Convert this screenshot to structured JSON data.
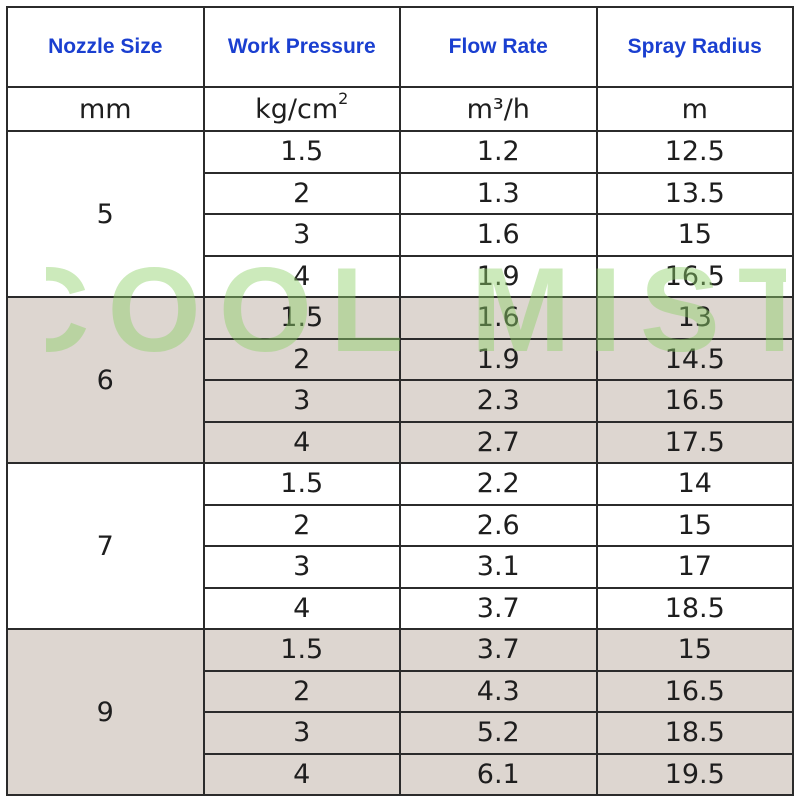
{
  "headers": [
    "Nozzle Size",
    "Work Pressure",
    "Flow Rate",
    "Spray Radius"
  ],
  "units": {
    "nozzle": "mm",
    "pressure_base": "kg/cm",
    "pressure_exp": "2",
    "flow": "m³/h",
    "radius": "m"
  },
  "groups": [
    {
      "nozzle": "5",
      "rows": [
        {
          "pressure": "1.5",
          "flow": "1.2",
          "radius": "12.5"
        },
        {
          "pressure": "2",
          "flow": "1.3",
          "radius": "13.5"
        },
        {
          "pressure": "3",
          "flow": "1.6",
          "radius": "15"
        },
        {
          "pressure": "4",
          "flow": "1.9",
          "radius": "16.5"
        }
      ]
    },
    {
      "nozzle": "6",
      "rows": [
        {
          "pressure": "1.5",
          "flow": "1.6",
          "radius": "13"
        },
        {
          "pressure": "2",
          "flow": "1.9",
          "radius": "14.5"
        },
        {
          "pressure": "3",
          "flow": "2.3",
          "radius": "16.5"
        },
        {
          "pressure": "4",
          "flow": "2.7",
          "radius": "17.5"
        }
      ]
    },
    {
      "nozzle": "7",
      "rows": [
        {
          "pressure": "1.5",
          "flow": "2.2",
          "radius": "14"
        },
        {
          "pressure": "2",
          "flow": "2.6",
          "radius": "15"
        },
        {
          "pressure": "3",
          "flow": "3.1",
          "radius": "17"
        },
        {
          "pressure": "4",
          "flow": "3.7",
          "radius": "18.5"
        }
      ]
    },
    {
      "nozzle": "9",
      "rows": [
        {
          "pressure": "1.5",
          "flow": "3.7",
          "radius": "15"
        },
        {
          "pressure": "2",
          "flow": "4.3",
          "radius": "16.5"
        },
        {
          "pressure": "3",
          "flow": "5.2",
          "radius": "18.5"
        },
        {
          "pressure": "4",
          "flow": "6.1",
          "radius": "19.5"
        }
      ]
    }
  ],
  "watermark": {
    "text": "COOL MIST",
    "color": "#8fd16a"
  },
  "colors": {
    "header_text": "#1a3fd0",
    "shaded_row": "#ddd6d0",
    "border": "#2b2b2b"
  }
}
